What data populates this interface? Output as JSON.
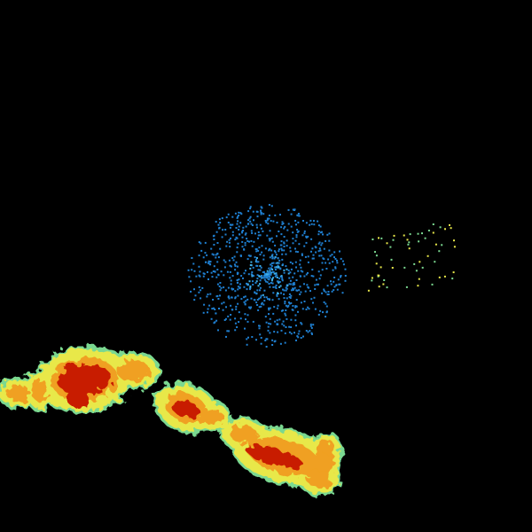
{
  "colors": {
    "background": "#000000",
    "light_echo": "#e8e84a",
    "moderate_echo": "#f0a020",
    "heavy_echo": "#c81e00",
    "edge_echo": "#7ad890",
    "clutter_blue": "#1f7fd0",
    "clutter_light": "#3fb0e8"
  }
}
